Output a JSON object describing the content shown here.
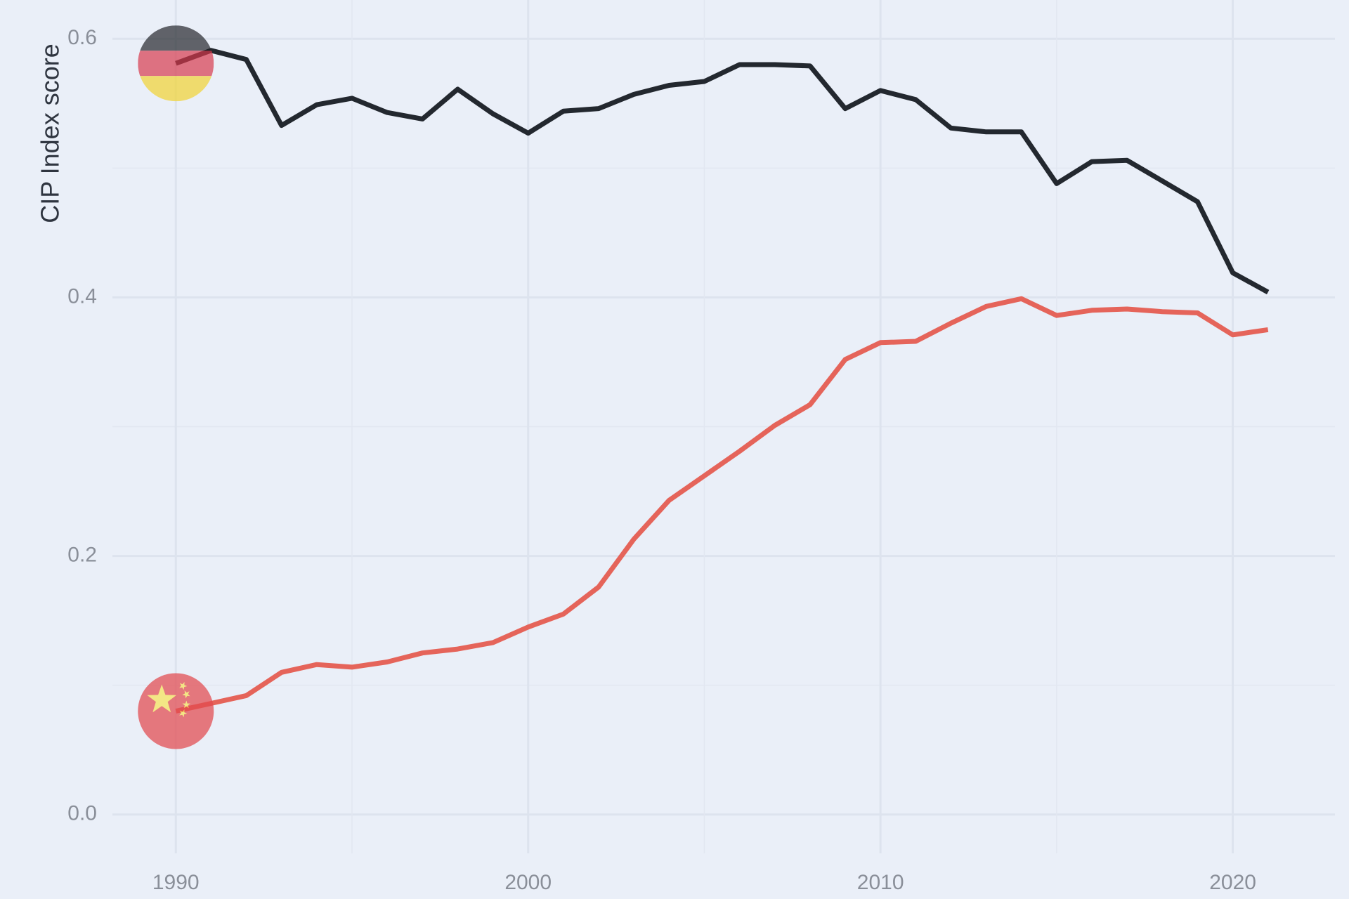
{
  "chart_data": {
    "type": "line",
    "title": "",
    "xlabel": "",
    "ylabel": "CIP Index score",
    "xlim": [
      1988.2,
      2022.9
    ],
    "ylim": [
      -0.03,
      0.63
    ],
    "x_ticks": [
      1990,
      2000,
      2010,
      2020
    ],
    "y_ticks": [
      0.0,
      0.2,
      0.4,
      0.6
    ],
    "y_tick_labels": [
      "0.0",
      "0.2",
      "0.4",
      "0.6"
    ],
    "grid": true,
    "legend": "none",
    "x": [
      1990,
      1991,
      1992,
      1993,
      1994,
      1995,
      1996,
      1997,
      1998,
      1999,
      2000,
      2001,
      2002,
      2003,
      2004,
      2005,
      2006,
      2007,
      2008,
      2009,
      2010,
      2011,
      2012,
      2013,
      2014,
      2015,
      2016,
      2017,
      2018,
      2019,
      2020,
      2021
    ],
    "series": [
      {
        "color": "#23282f",
        "flag_icon": "germany-flag-icon",
        "values": [
          0.581,
          0.591,
          0.584,
          0.533,
          0.549,
          0.554,
          0.543,
          0.538,
          0.561,
          0.542,
          0.527,
          0.544,
          0.546,
          0.557,
          0.564,
          0.567,
          0.58,
          0.58,
          0.579,
          0.546,
          0.56,
          0.553,
          0.531,
          0.528,
          0.528,
          0.488,
          0.505,
          0.506,
          0.49,
          0.474,
          0.419,
          0.404
        ]
      },
      {
        "color": "#e5645a",
        "flag_icon": "china-flag-icon",
        "values": [
          0.08,
          0.086,
          0.092,
          0.11,
          0.116,
          0.114,
          0.118,
          0.125,
          0.128,
          0.133,
          0.145,
          0.155,
          0.176,
          0.213,
          0.243,
          0.262,
          0.281,
          0.301,
          0.317,
          0.352,
          0.365,
          0.366,
          0.38,
          0.393,
          0.399,
          0.386,
          0.39,
          0.391,
          0.389,
          0.388,
          0.371,
          0.375
        ]
      }
    ]
  }
}
